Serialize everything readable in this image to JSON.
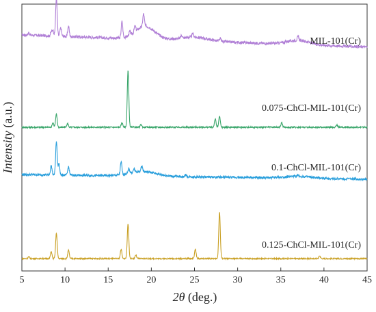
{
  "chart_data": {
    "type": "line",
    "title": "",
    "xlabel_var": "2θ",
    "xlabel_unit": " (deg.)",
    "ylabel_italic": "Intensity",
    "ylabel_unit": " (a.u.)",
    "xlim": [
      5,
      45
    ],
    "xticks": [
      "5",
      "10",
      "15",
      "20",
      "25",
      "30",
      "35",
      "40",
      "45"
    ],
    "y_ticks_shown": false,
    "grid": false,
    "legend": "inline labels",
    "series": [
      {
        "name": "MIL-101(Cr)",
        "color": "#b07fd6",
        "baseline": 0.53,
        "slope": -0.0065,
        "noise": 0.06,
        "peaks": [
          [
            5.8,
            0.05
          ],
          [
            8.4,
            0.08
          ],
          [
            8.6,
            0.12
          ],
          [
            9.0,
            0.82
          ],
          [
            9.5,
            0.18
          ],
          [
            10.4,
            0.22
          ],
          [
            16.6,
            0.35
          ],
          [
            17.5,
            0.08
          ],
          [
            18.1,
            0.12
          ],
          [
            19.1,
            0.27
          ],
          [
            23.5,
            0.06
          ],
          [
            24.8,
            0.08
          ],
          [
            28.0,
            0.05
          ],
          [
            37.0,
            0.08
          ]
        ],
        "broad": [
          [
            19.3,
            1.1,
            0.28
          ],
          [
            25.0,
            1.6,
            0.08
          ],
          [
            37.0,
            1.3,
            0.09
          ]
        ]
      },
      {
        "name": "0.075-ChCl-MIL-101(Cr)",
        "color": "#3aa66b",
        "baseline": 0.0,
        "slope": 0.0,
        "noise": 0.03,
        "peaks": [
          [
            8.6,
            0.1
          ],
          [
            9.0,
            0.28
          ],
          [
            10.3,
            0.08
          ],
          [
            16.6,
            0.1
          ],
          [
            17.3,
            1.22
          ],
          [
            18.8,
            0.06
          ],
          [
            27.4,
            0.18
          ],
          [
            27.9,
            0.23
          ],
          [
            35.1,
            0.1
          ],
          [
            41.5,
            0.05
          ]
        ],
        "broad": []
      },
      {
        "name": "0.1-ChCl-MIL-101(Cr)",
        "color": "#2a9fdc",
        "baseline": 0.22,
        "slope": -0.0025,
        "noise": 0.05,
        "peaks": [
          [
            8.4,
            0.2
          ],
          [
            9.0,
            0.72
          ],
          [
            9.3,
            0.25
          ],
          [
            10.4,
            0.18
          ],
          [
            16.5,
            0.27
          ],
          [
            17.4,
            0.1
          ],
          [
            18.0,
            0.07
          ],
          [
            18.9,
            0.12
          ],
          [
            24.0,
            0.04
          ],
          [
            37.0,
            0.03
          ]
        ],
        "broad": [
          [
            19.0,
            1.5,
            0.1
          ],
          [
            37.0,
            1.5,
            0.04
          ]
        ]
      },
      {
        "name": "0.125-ChCl-MIL-101(Cr)",
        "color": "#c9a024",
        "baseline": 0.0,
        "slope": 0.0,
        "noise": 0.025,
        "peaks": [
          [
            5.8,
            0.04
          ],
          [
            8.4,
            0.15
          ],
          [
            9.0,
            0.55
          ],
          [
            10.4,
            0.18
          ],
          [
            16.5,
            0.2
          ],
          [
            17.3,
            0.75
          ],
          [
            18.2,
            0.08
          ],
          [
            25.1,
            0.2
          ],
          [
            27.9,
            1.0
          ],
          [
            39.5,
            0.06
          ]
        ],
        "broad": []
      }
    ]
  }
}
